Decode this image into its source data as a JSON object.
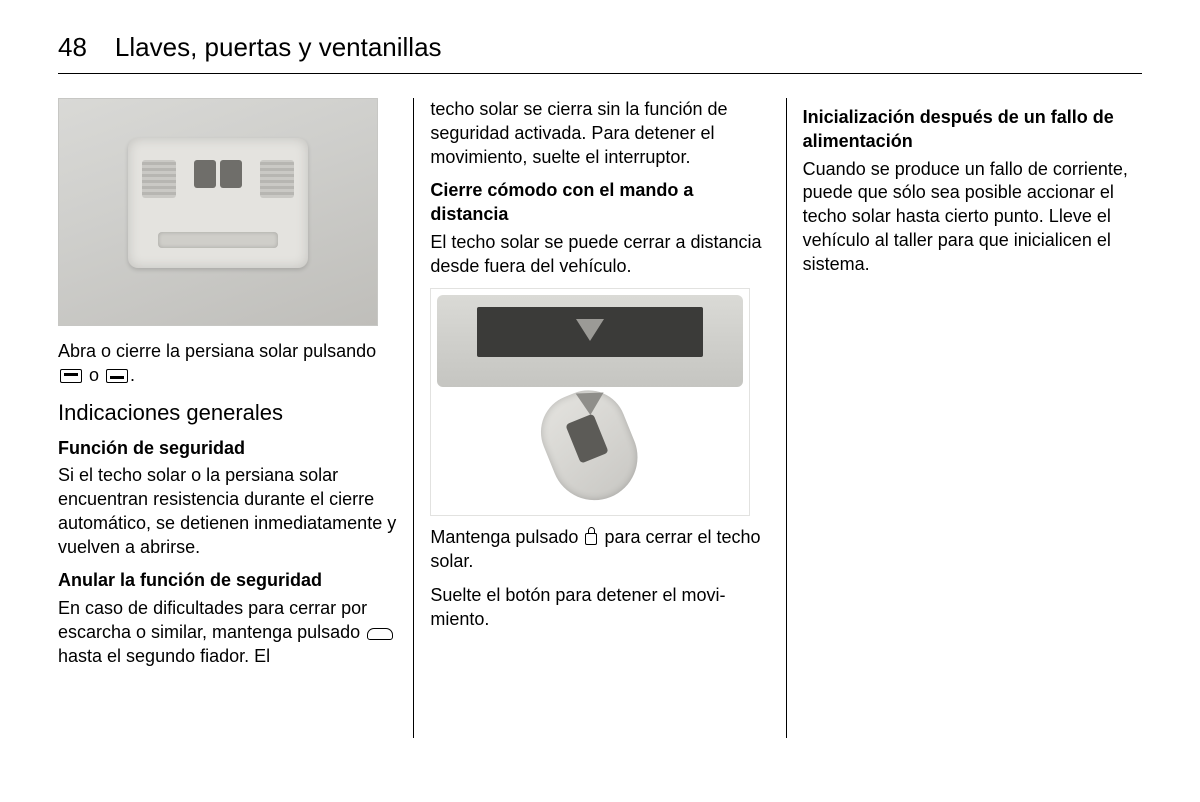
{
  "page_number": "48",
  "chapter_title": "Llaves, puertas y ventanillas",
  "col1": {
    "caption_pre": "Abra o cierre la persiana solar pul­sando ",
    "caption_mid": " o ",
    "caption_post": ".",
    "h2": "Indicaciones generales",
    "sec1_h": "Función de seguridad",
    "sec1_p": "Si el techo solar o la persiana solar encuentran resistencia durante el cie­rre automático, se detienen inmedia­tamente y vuelven a abrirse.",
    "sec2_h": "Anular la función de seguridad",
    "sec2_p_pre": "En caso de dificultades para cerrar por escarcha o similar, mantenga pul­sado ",
    "sec2_p_post": " hasta el segundo fiador. El"
  },
  "col2": {
    "p1": "techo solar se cierra sin la función de seguridad activada. Para detener el movimiento, suelte el interruptor.",
    "sec1_h": "Cierre cómodo con el mando a distancia",
    "sec1_p": "El techo solar se puede cerrar a dis­tancia desde fuera del vehículo.",
    "p2_pre": "Mantenga pulsado ",
    "p2_post": " para cerrar el te­cho solar.",
    "p3": "Suelte el botón para detener el movi­miento."
  },
  "col3": {
    "sec1_h": "Inicialización después de un fallo de alimentación",
    "sec1_p": "Cuando se produce un fallo de co­rriente, puede que sólo sea posible accionar el techo solar hasta cierto punto. Lleve el vehículo al taller para que inicialicen el sistema."
  }
}
